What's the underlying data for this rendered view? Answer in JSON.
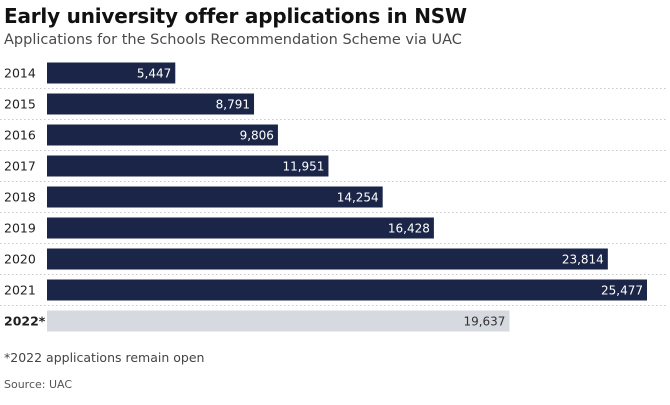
{
  "header": {
    "title": "Early university offer applications in NSW",
    "subtitle": "Applications for the Schools Recommendation Scheme via UAC"
  },
  "footer": {
    "footnote": "*2022 applications remain open",
    "source": "Source: UAC"
  },
  "colors": {
    "bar": "#1b2547",
    "bar_highlight": "#d7d9e1",
    "bar_label": "#ffffff",
    "bar_label_highlight": "#333333",
    "gridline": "#c8c8c8"
  },
  "chart_data": {
    "type": "bar",
    "orientation": "horizontal",
    "categories": [
      "2014",
      "2015",
      "2016",
      "2017",
      "2018",
      "2019",
      "2020",
      "2021",
      "2022*"
    ],
    "values": [
      5447,
      8791,
      9806,
      11951,
      14254,
      16428,
      23814,
      25477,
      19637
    ],
    "value_labels": [
      "5,447",
      "8,791",
      "9,806",
      "11,951",
      "14,254",
      "16,428",
      "23,814",
      "25,477",
      "19,637"
    ],
    "highlight_categories": [
      "2022*"
    ],
    "xlim": [
      0,
      25477
    ],
    "grid": false,
    "legend": "none"
  }
}
